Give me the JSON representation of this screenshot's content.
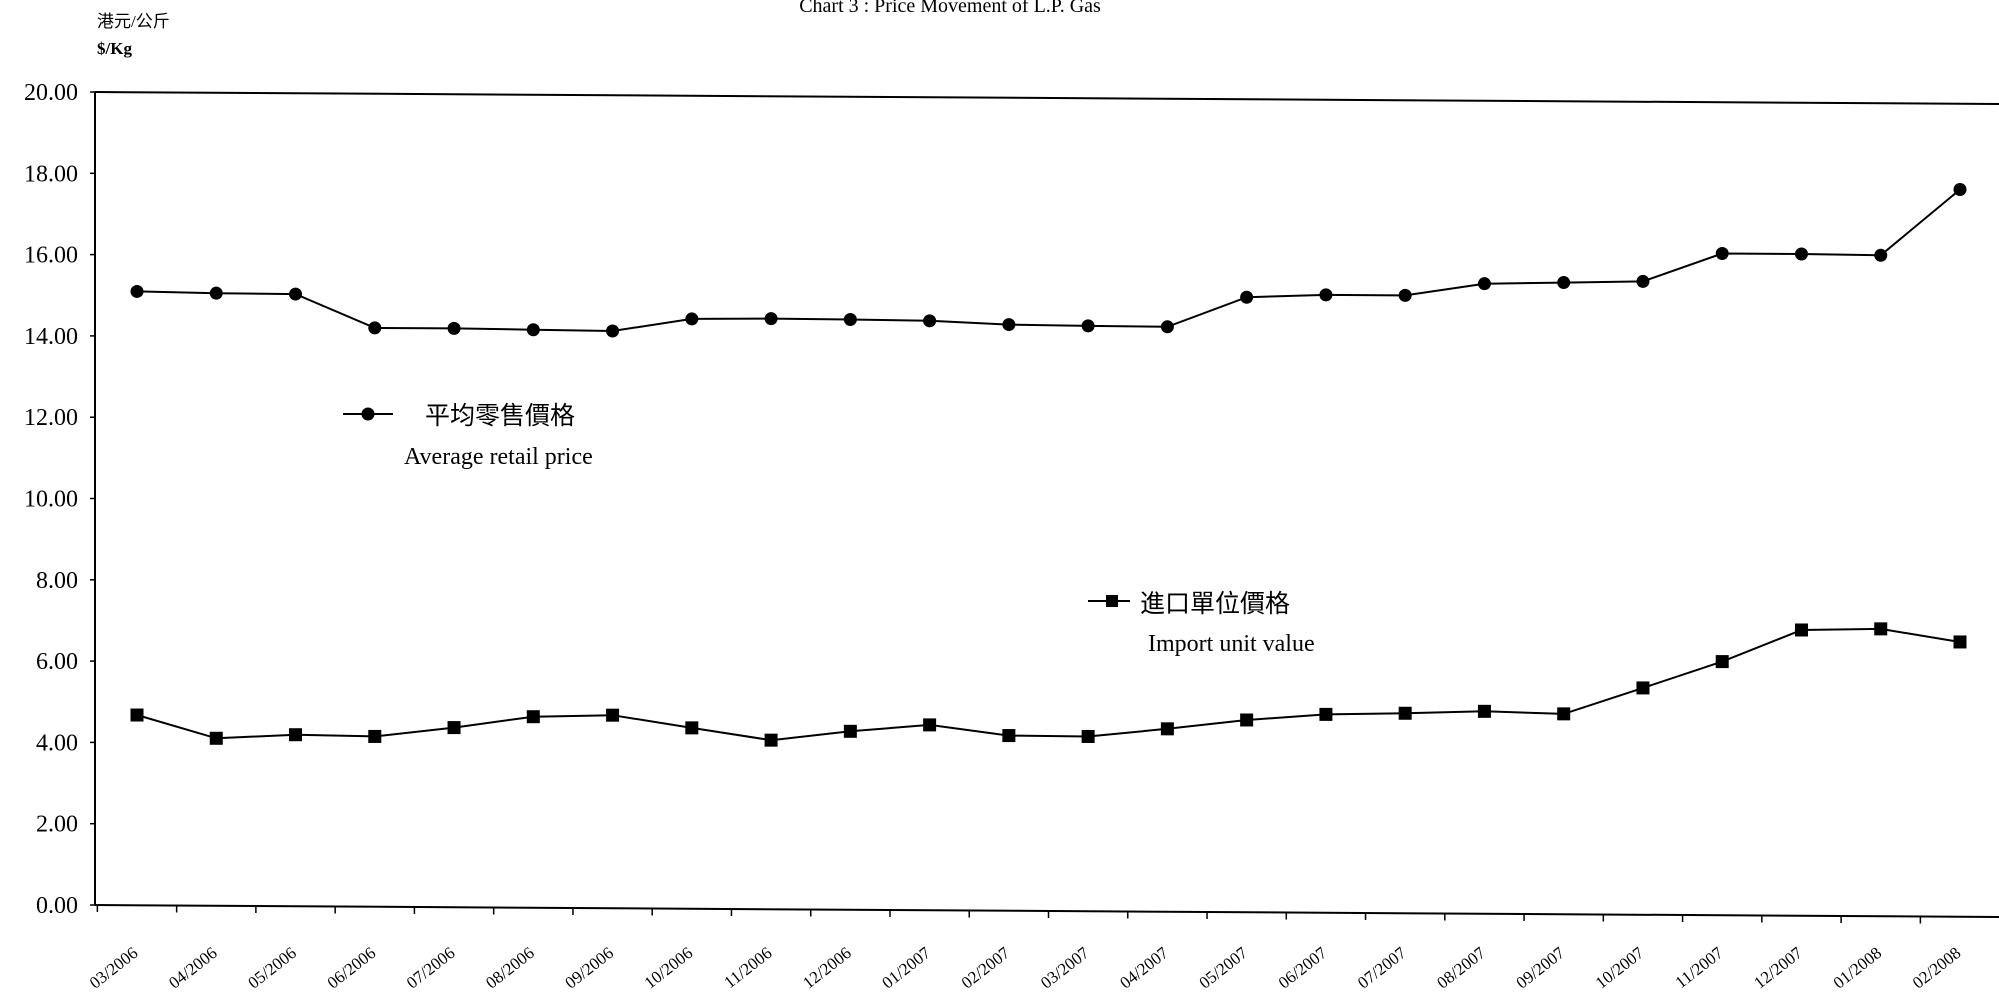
{
  "chart_data": {
    "type": "line",
    "title": "Chart 3 :  Price Movement of L.P. Gas",
    "ylabel_cn": "港元/公斤",
    "ylabel": "$/Kg",
    "ylim": [
      0,
      20
    ],
    "yticks": [
      "0.00",
      "2.00",
      "4.00",
      "6.00",
      "8.00",
      "10.00",
      "12.00",
      "14.00",
      "16.00",
      "18.00",
      "20.00"
    ],
    "categories": [
      "03/2006",
      "04/2006",
      "05/2006",
      "06/2006",
      "07/2006",
      "08/2006",
      "09/2006",
      "10/2006",
      "11/2006",
      "12/2006",
      "01/2007",
      "02/2007",
      "03/2007",
      "04/2007",
      "05/2007",
      "06/2007",
      "07/2007",
      "08/2007",
      "09/2007",
      "10/2007",
      "11/2007",
      "12/2007",
      "01/2008",
      "02/2008"
    ],
    "grid": false,
    "series": [
      {
        "name_cn": "平均零售價格",
        "name": "Average retail price",
        "marker": "circle",
        "color": "#000000",
        "values": [
          15.1,
          15.07,
          15.06,
          14.24,
          14.24,
          14.22,
          14.2,
          14.51,
          14.53,
          14.52,
          14.5,
          14.42,
          14.4,
          14.39,
          15.13,
          15.2,
          15.2,
          15.5,
          15.54,
          15.58,
          16.28,
          16.28,
          16.26,
          17.89
        ]
      },
      {
        "name_cn": "進口單位價格",
        "name": "Import unit value",
        "marker": "square",
        "color": "#000000",
        "values": [
          4.68,
          4.12,
          4.22,
          4.19,
          4.42,
          4.7,
          4.75,
          4.45,
          4.16,
          4.39,
          4.56,
          4.31,
          4.3,
          4.5,
          4.73,
          4.88,
          4.92,
          4.98,
          4.93,
          5.58,
          6.24,
          7.03,
          7.07,
          6.76
        ]
      }
    ]
  }
}
